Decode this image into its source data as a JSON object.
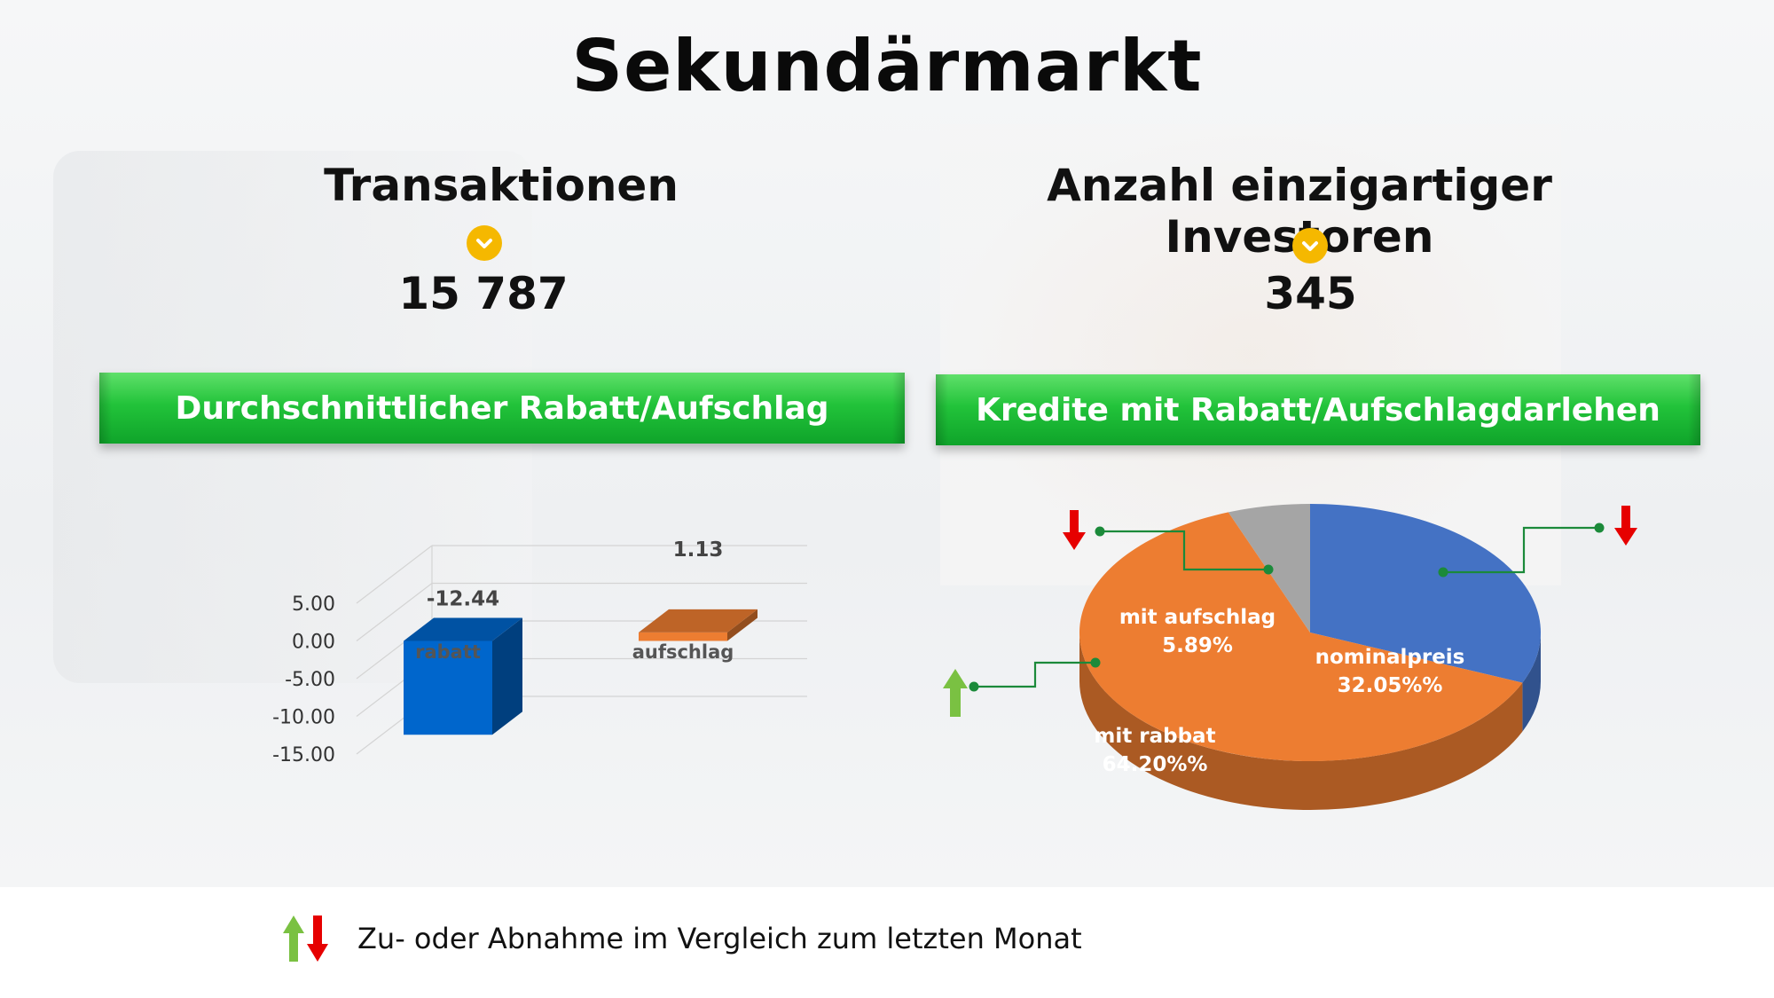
{
  "title": "Sekundärmarkt",
  "kpis": [
    {
      "label": "Transaktionen",
      "value": "15 787",
      "trend": "down"
    },
    {
      "label": "Anzahl einzigartiger Investoren",
      "value": "345",
      "trend": "down"
    }
  ],
  "banners": {
    "left": "Durchschnittlicher Rabatt/Aufschlag",
    "right": "Kredite mit Rabatt/Aufschlagdarlehen"
  },
  "colors": {
    "accent_green": "#22c33a",
    "chevron": "#f5b800",
    "blue": "#4472c4",
    "orange": "#ed7d31",
    "gray": "#a5a5a5",
    "up_arrow": "#7ac142",
    "down_arrow": "#e60000"
  },
  "chart_data": [
    {
      "type": "bar",
      "categories": [
        "rabatt",
        "aufschlag"
      ],
      "values": [
        -12.44,
        1.13
      ],
      "data_labels": [
        "-12.44",
        "1.13"
      ],
      "tick_labels": [
        "5.00",
        "0.00",
        "-5.00",
        "-10.00",
        "-15.00"
      ],
      "ylim": [
        -15,
        5
      ],
      "grid": true,
      "colors": [
        "#0066cc",
        "#ed7d31"
      ]
    },
    {
      "type": "pie",
      "slices": [
        {
          "label": "nominalpreis",
          "value": 32.05,
          "display": "32.05%%",
          "color": "#4472c4",
          "trend": "down"
        },
        {
          "label": "mit rabbat",
          "value": 64.2,
          "display": "64.20%%",
          "color": "#ed7d31",
          "trend": "up"
        },
        {
          "label": "mit aufschlag",
          "value": 5.89,
          "display": "5.89%",
          "color": "#a5a5a5",
          "trend": "down"
        }
      ]
    }
  ],
  "legend": {
    "text": "Zu- oder Abnahme im Vergleich zum letzten Monat"
  }
}
